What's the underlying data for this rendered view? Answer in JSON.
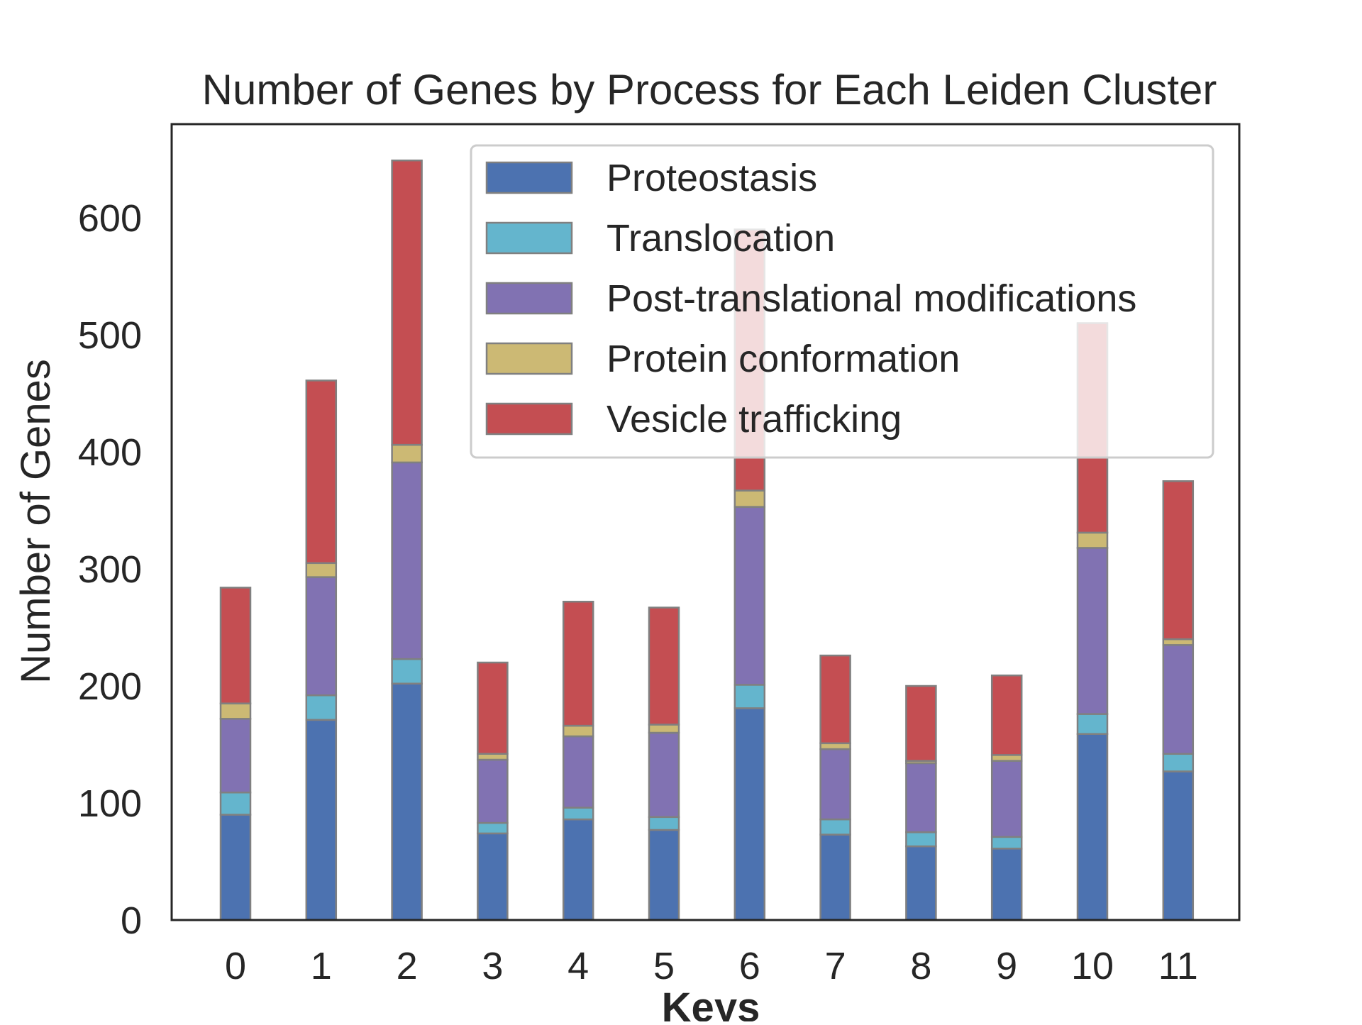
{
  "chart_data": {
    "type": "bar",
    "stacked": true,
    "title": "Number of Genes by Process for Each Leiden Cluster",
    "xlabel": "Keys",
    "ylabel": "Number of Genes",
    "categories": [
      "0",
      "1",
      "2",
      "3",
      "4",
      "5",
      "6",
      "7",
      "8",
      "9",
      "10",
      "11"
    ],
    "ylim": [
      0,
      680
    ],
    "yticks": [
      0,
      100,
      200,
      300,
      400,
      500,
      600
    ],
    "grid": false,
    "legend_position": "top-right",
    "series": [
      {
        "name": "Proteostasis",
        "color": "#4c72b0",
        "values": [
          90,
          171,
          202,
          74,
          86,
          77,
          181,
          73,
          63,
          61,
          159,
          127
        ]
      },
      {
        "name": "Translocation",
        "color": "#64b5cd",
        "values": [
          19,
          21,
          21,
          9,
          10,
          11,
          20,
          13,
          12,
          10,
          17,
          15
        ]
      },
      {
        "name": "Post-translational modifications",
        "color": "#8172b2",
        "values": [
          63,
          101,
          168,
          54,
          61,
          72,
          152,
          60,
          59,
          65,
          142,
          93
        ]
      },
      {
        "name": "Protein conformation",
        "color": "#ccb974",
        "values": [
          13,
          12,
          15,
          5,
          9,
          7,
          14,
          5,
          2,
          5,
          13,
          5
        ]
      },
      {
        "name": "Vesicle trafficking",
        "color": "#c44e52",
        "values": [
          99,
          156,
          243,
          78,
          106,
          100,
          223,
          75,
          64,
          68,
          179,
          135
        ]
      }
    ]
  }
}
